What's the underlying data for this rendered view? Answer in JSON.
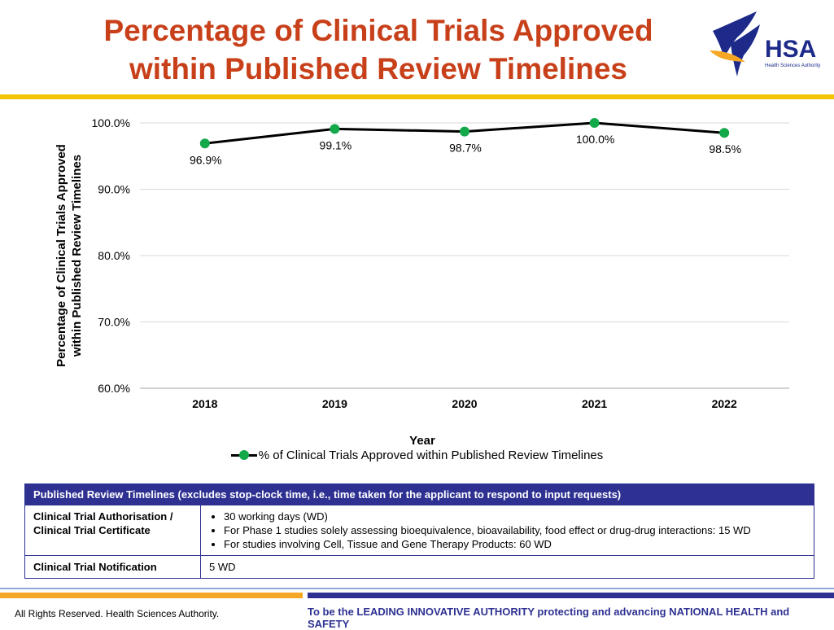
{
  "header": {
    "title_line1": "Percentage of Clinical Trials Approved",
    "title_line2": "within Published Review Timelines",
    "logo_text": "HSA",
    "logo_subtext": "Health Sciences Authority"
  },
  "chart_data": {
    "type": "line",
    "title": "Percentage of Clinical Trials Approved within Published Review Timelines",
    "categories": [
      "2018",
      "2019",
      "2020",
      "2021",
      "2022"
    ],
    "series": [
      {
        "name": "% of Clinical Trials Approved within Published Review Timelines",
        "values": [
          96.9,
          99.1,
          98.7,
          100.0,
          98.5
        ],
        "labels": [
          "96.9%",
          "99.1%",
          "98.7%",
          "100.0%",
          "98.5%"
        ],
        "color": "#000000",
        "marker_color": "#13a84a"
      }
    ],
    "xlabel": "Year",
    "ylabel_line1": "Percentage of Clinical Trials Approved",
    "ylabel_line2": "within Published Review Timelines",
    "ylim": [
      60,
      100
    ],
    "yticks": [
      60,
      70,
      80,
      90,
      100
    ],
    "ytick_labels": [
      "60.0%",
      "70.0%",
      "80.0%",
      "90.0%",
      "100.0%"
    ],
    "grid": true,
    "legend_position": "bottom"
  },
  "table": {
    "header": "Published Review Timelines (excludes stop-clock time, i.e., time taken for the applicant to respond to input requests)",
    "row1_key_line1": "Clinical Trial Authorisation /",
    "row1_key_line2": "Clinical Trial Certificate",
    "row1_items": [
      "30 working days (WD)",
      "For Phase 1 studies solely assessing bioequivalence, bioavailability, food effect or drug-drug interactions: 15 WD",
      "For studies involving Cell, Tissue and Gene Therapy Products: 60 WD"
    ],
    "row2_key": "Clinical Trial Notification",
    "row2_value": "5 WD"
  },
  "footer": {
    "copyright": "All Rights Reserved. Health Sciences Authority.",
    "tagline": "To be the LEADING INNOVATIVE AUTHORITY protecting and advancing NATIONAL HEALTH and SAFETY"
  },
  "colors": {
    "title": "#c8401a",
    "accent_yellow": "#f5c400",
    "navy": "#2e3192",
    "marker": "#13a84a"
  }
}
